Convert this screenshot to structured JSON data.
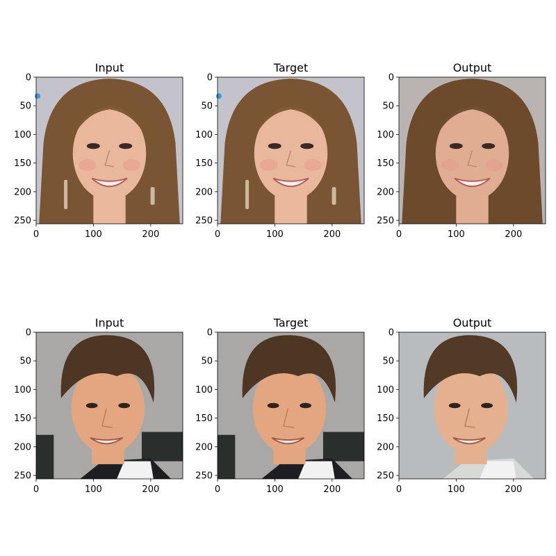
{
  "chart_data": {
    "type": "image_grid",
    "x_ticks": [
      0,
      100,
      200
    ],
    "y_ticks": [
      0,
      50,
      100,
      150,
      200,
      250
    ],
    "xlim": [
      0,
      256
    ],
    "ylim": [
      256,
      0
    ],
    "panels": [
      {
        "title": "Input",
        "row": 0,
        "col": 0,
        "subject": "woman-long-brown-hair",
        "background": "#c4c3cc",
        "skin": "#e8b79c",
        "hair": "#7a5533",
        "marker": true
      },
      {
        "title": "Target",
        "row": 0,
        "col": 1,
        "subject": "woman-long-brown-hair",
        "background": "#c4c3cc",
        "skin": "#e8b79c",
        "hair": "#7a5533",
        "marker": true
      },
      {
        "title": "Output",
        "row": 0,
        "col": 2,
        "subject": "woman-long-brown-hair",
        "background": "#b9b4b2",
        "skin": "#e0ad93",
        "hair": "#6d4a2c",
        "marker": false
      },
      {
        "title": "Input",
        "row": 1,
        "col": 0,
        "subject": "man-short-brown-hair",
        "background": "#a9a8a6",
        "skin": "#e3a680",
        "hair": "#4d3624",
        "marker": false
      },
      {
        "title": "Target",
        "row": 1,
        "col": 1,
        "subject": "man-short-brown-hair",
        "background": "#a9a8a6",
        "skin": "#e3a680",
        "hair": "#4d3624",
        "marker": false
      },
      {
        "title": "Output",
        "row": 1,
        "col": 2,
        "subject": "man-short-brown-hair",
        "background": "#b8bcbf",
        "skin": "#e5b08f",
        "hair": "#523a26",
        "marker": false
      }
    ]
  },
  "colors": {
    "marker": "#3a9ad9"
  }
}
